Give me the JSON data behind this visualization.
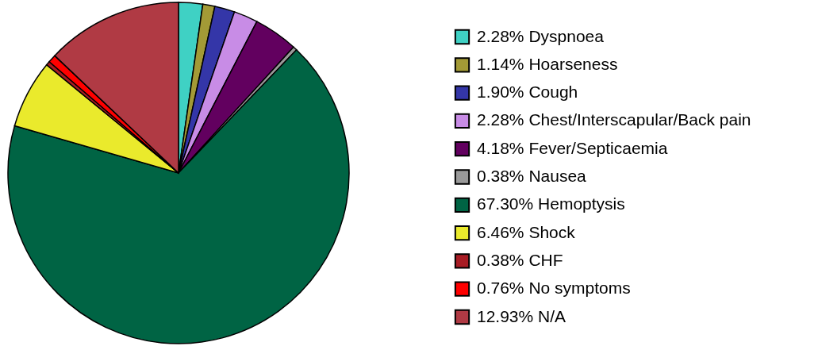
{
  "chart_data": {
    "type": "pie",
    "categories": [
      "Dyspnoea",
      "Hoarseness",
      "Cough",
      "Chest/Interscapular/Back pain",
      "Fever/Septicaemia",
      "Nausea",
      "Hemoptysis",
      "Shock",
      "CHF",
      "No symptoms",
      "N/A"
    ],
    "values": [
      2.28,
      1.14,
      1.9,
      2.28,
      4.18,
      0.38,
      67.3,
      6.46,
      0.38,
      0.76,
      12.93
    ],
    "value_labels": [
      "2.28%",
      "1.14%",
      "1.90%",
      "2.28%",
      "4.18%",
      "0.38%",
      "67.30%",
      "6.46%",
      "0.38%",
      "0.76%",
      "12.93%"
    ],
    "colors": [
      "#3fd1c4",
      "#a39a36",
      "#3436a8",
      "#c88ce6",
      "#62005f",
      "#9a9a9a",
      "#006444",
      "#eaea2c",
      "#a81c24",
      "#ff0000",
      "#b03a44"
    ],
    "legend": "right"
  }
}
